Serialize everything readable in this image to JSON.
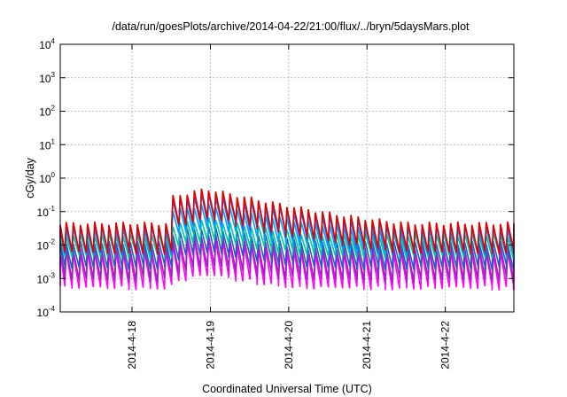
{
  "chart_data": {
    "type": "line",
    "title": "/data/run/goesPlots/archive/2014-04-22/21:00/flux/../bryn/5daysMars.plot",
    "xlabel": "Coordinated Universal Time (UTC)",
    "ylabel": "cGy/day",
    "yscale": "log",
    "ylim": [
      0.0001,
      10000
    ],
    "xlim": [
      "2014-04-17T02:00",
      "2014-04-22T21:00"
    ],
    "grid": true,
    "legend": "none",
    "yticks": [
      {
        "base": "10",
        "exp": "-4"
      },
      {
        "base": "10",
        "exp": "-3"
      },
      {
        "base": "10",
        "exp": "-2"
      },
      {
        "base": "10",
        "exp": "-1"
      },
      {
        "base": "10",
        "exp": "0"
      },
      {
        "base": "10",
        "exp": "1"
      },
      {
        "base": "10",
        "exp": "2"
      },
      {
        "base": "10",
        "exp": "3"
      },
      {
        "base": "10",
        "exp": "4"
      }
    ],
    "xticks": [
      {
        "label": "2014-4-18",
        "time": "2014-04-18T00:00"
      },
      {
        "label": "2014-4-19",
        "time": "2014-04-19T00:00"
      },
      {
        "label": "2014-4-20",
        "time": "2014-04-20T00:00"
      },
      {
        "label": "2014-4-21",
        "time": "2014-04-21T00:00"
      },
      {
        "label": "2014-4-22",
        "time": "2014-04-22T00:00"
      }
    ],
    "sawtooth_cycles_per_day": 11,
    "solar_event_start": "2014-04-18T13:00",
    "series": [
      {
        "color": "#e00000",
        "base": 0.045,
        "event_peak": 0.45,
        "trough_ratio": 0.14
      },
      {
        "color": "#3060e0",
        "base": 0.038,
        "event_peak": 0.32,
        "trough_ratio": 0.16
      },
      {
        "color": "#00a0ff",
        "base": 0.03,
        "event_peak": 0.15,
        "trough_ratio": 0.2
      },
      {
        "color": "#00c8a0",
        "base": 0.02,
        "event_peak": 0.05,
        "trough_ratio": 0.24
      },
      {
        "color": "#2060c0",
        "base": 0.012,
        "event_peak": 0.028,
        "trough_ratio": 0.18
      },
      {
        "color": "#a020c0",
        "base": 0.008,
        "event_peak": 0.016,
        "trough_ratio": 0.12
      },
      {
        "color": "#ff00ff",
        "base": 0.006,
        "event_peak": 0.011,
        "trough_ratio": 0.09
      }
    ]
  }
}
